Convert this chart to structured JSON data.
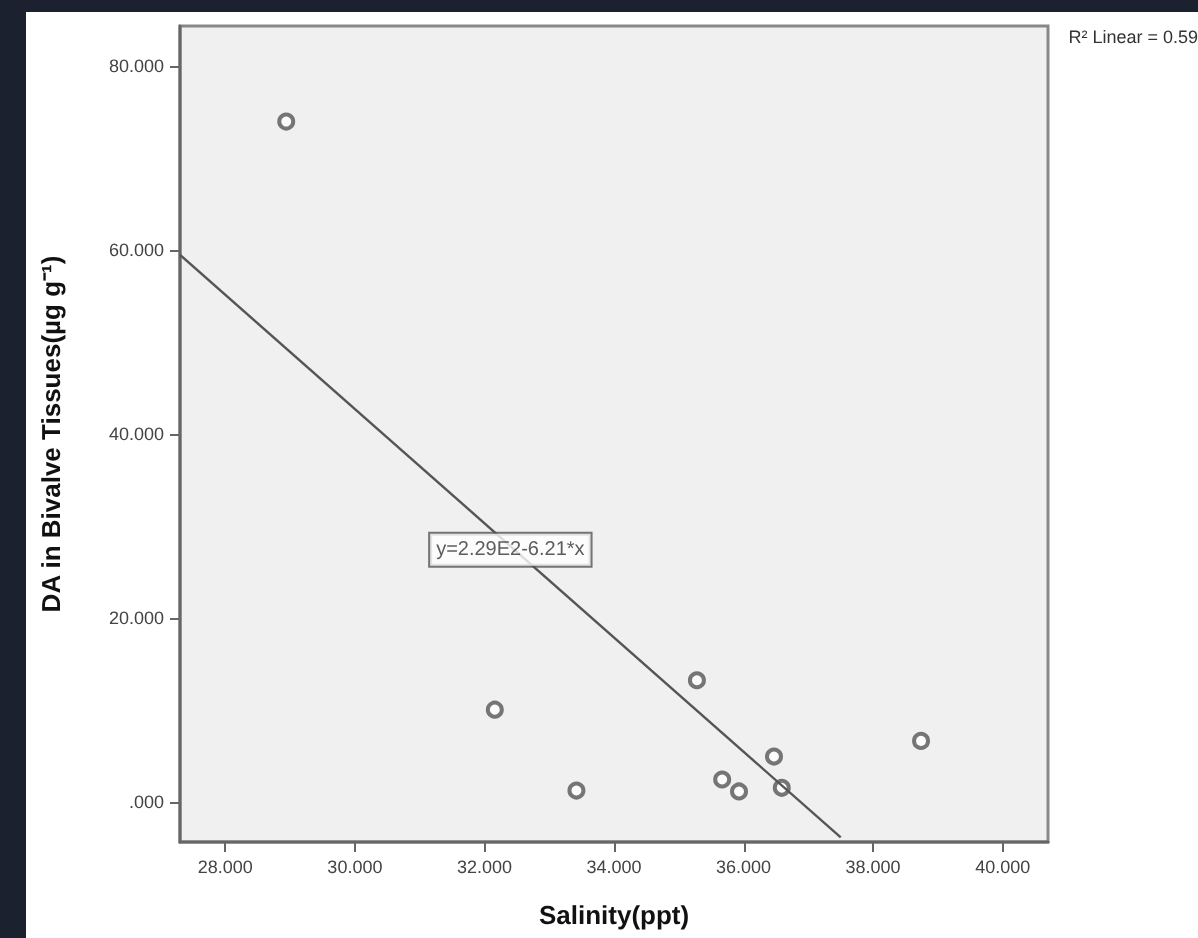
{
  "chart_data": {
    "type": "scatter",
    "xlabel": "Salinity(ppt)",
    "ylabel": "DA in Bivalve Tissues(µg g⁻¹)",
    "series": [
      {
        "color": "#555555",
        "marker": "circle",
        "x": [
          28.94,
          32.16,
          33.42,
          35.28,
          35.67,
          35.93,
          36.47,
          36.59,
          38.74
        ],
        "values": [
          74.0,
          10.0,
          1.2,
          13.2,
          2.4,
          1.1,
          4.9,
          1.5,
          6.6
        ]
      },
      {
        "type": "line",
        "color": "#555555",
        "marker": "none",
        "line_style": "solid",
        "x": [
          27.3,
          37.5
        ],
        "values": [
          59.5,
          -3.9
        ]
      }
    ],
    "xlim": [
      27.3,
      40.7
    ],
    "xticks": [
      {
        "value": 28,
        "label": "28.000"
      },
      {
        "value": 30,
        "label": "30.000"
      },
      {
        "value": 32,
        "label": "32.000"
      },
      {
        "value": 34,
        "label": "34.000"
      },
      {
        "value": 36,
        "label": "36.000"
      },
      {
        "value": 38,
        "label": "38.000"
      },
      {
        "value": 40,
        "label": "40.000"
      }
    ],
    "ylim": [
      -4.4,
      84.4
    ],
    "yticks": [
      {
        "value": 0,
        "label": ".000"
      },
      {
        "value": 20,
        "label": "20.000"
      },
      {
        "value": 40,
        "label": "40.000"
      },
      {
        "value": 60,
        "label": "60.000"
      },
      {
        "value": 80,
        "label": "80.000"
      }
    ],
    "annotations": [
      {
        "text": "y=2.29E2-6.21*x",
        "x": 32.4,
        "y": 27.4
      },
      "R² Linear = 0.59"
    ],
    "grid": false
  }
}
